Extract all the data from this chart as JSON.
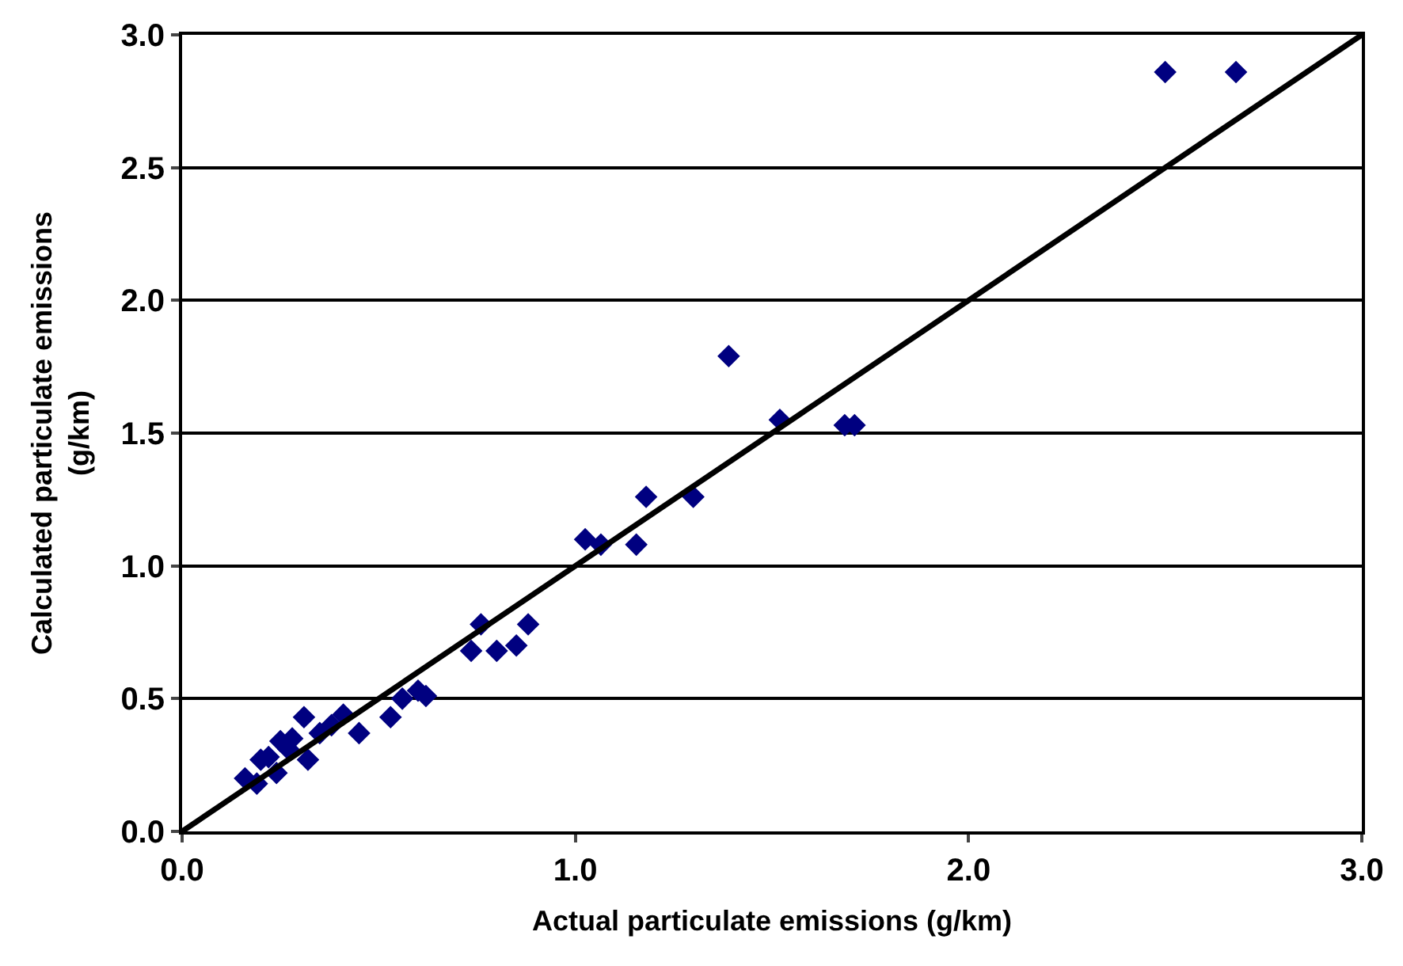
{
  "chart_data": {
    "type": "scatter",
    "xlabel": "Actual particulate emissions (g/km)",
    "ylabel": "Calculated particulate emissions\n(g/km)",
    "xlim": [
      0,
      3
    ],
    "ylim": [
      0,
      3
    ],
    "xticks": [
      {
        "value": 0,
        "label": "0.0"
      },
      {
        "value": 1,
        "label": "1.0"
      },
      {
        "value": 2,
        "label": "2.0"
      },
      {
        "value": 3,
        "label": "3.0"
      }
    ],
    "yticks": [
      {
        "value": 0,
        "label": "0.0"
      },
      {
        "value": 0.5,
        "label": "0.5"
      },
      {
        "value": 1,
        "label": "1.0"
      },
      {
        "value": 1.5,
        "label": "1.5"
      },
      {
        "value": 2,
        "label": "2.0"
      },
      {
        "value": 2.5,
        "label": "2.5"
      },
      {
        "value": 3,
        "label": "3.0"
      }
    ],
    "grid": "y",
    "series": [
      {
        "marker": "diamond",
        "color": "#000080",
        "x": [
          2.5,
          2.68,
          1.39,
          1.52,
          1.685,
          1.71,
          1.18,
          1.3,
          1.025,
          1.065,
          1.155,
          0.88,
          0.76,
          0.735,
          0.8,
          0.85,
          0.62,
          0.6,
          0.56,
          0.53,
          0.45,
          0.41,
          0.38,
          0.31,
          0.32,
          0.35,
          0.28,
          0.25,
          0.22,
          0.2,
          0.24,
          0.16,
          0.19,
          0.27
        ],
        "values": [
          2.86,
          2.86,
          1.79,
          1.55,
          1.53,
          1.53,
          1.26,
          1.26,
          1.1,
          1.08,
          1.08,
          0.78,
          0.78,
          0.68,
          0.68,
          0.7,
          0.51,
          0.53,
          0.5,
          0.43,
          0.37,
          0.44,
          0.4,
          0.43,
          0.27,
          0.37,
          0.35,
          0.34,
          0.28,
          0.27,
          0.22,
          0.2,
          0.18,
          0.31
        ]
      },
      {
        "type": "line",
        "marker": "none",
        "color": "#000000",
        "line_style": "solid",
        "x": [
          0,
          3
        ],
        "values": [
          0,
          3
        ]
      }
    ]
  }
}
